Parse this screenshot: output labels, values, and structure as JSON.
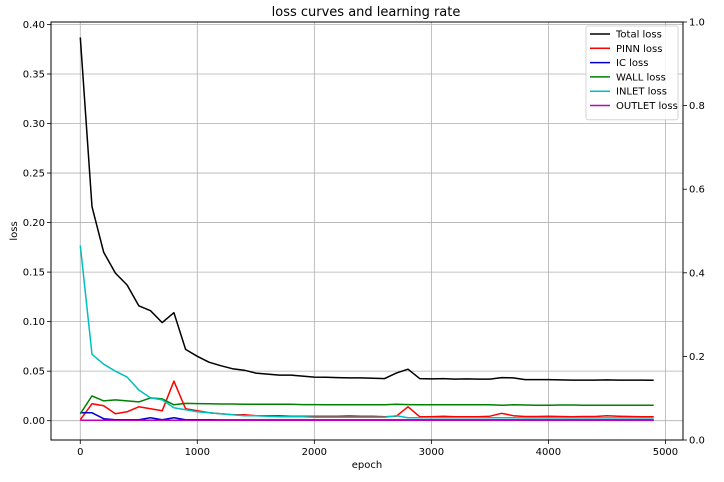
{
  "chart_data": {
    "type": "line",
    "title": "loss curves and learning rate",
    "xlabel": "epoch",
    "ylabel": "loss",
    "y2label": "",
    "xlim": [
      -250,
      5150
    ],
    "ylim": [
      -0.0195,
      0.4025
    ],
    "y2lim": [
      0,
      1.0
    ],
    "x_ticks": [
      0,
      1000,
      2000,
      3000,
      4000,
      5000
    ],
    "y_ticks": [
      0.0,
      0.05,
      0.1,
      0.15,
      0.2,
      0.25,
      0.3,
      0.35,
      0.4
    ],
    "y2_ticks": [
      0.0,
      0.2,
      0.4,
      0.6,
      0.8,
      1.0
    ],
    "x_tick_labels": [
      "0",
      "1000",
      "2000",
      "3000",
      "4000",
      "5000"
    ],
    "y_tick_labels": [
      "0.00",
      "0.05",
      "0.10",
      "0.15",
      "0.20",
      "0.25",
      "0.30",
      "0.35",
      "0.40"
    ],
    "y2_tick_labels": [
      "0.0",
      "0.2",
      "0.4",
      "0.6",
      "0.8",
      "1.0"
    ],
    "grid": true,
    "legend_position": "top-right",
    "x": [
      0,
      100,
      200,
      300,
      400,
      500,
      600,
      700,
      800,
      900,
      1000,
      1100,
      1200,
      1300,
      1400,
      1500,
      1600,
      1700,
      1800,
      1900,
      2000,
      2100,
      2200,
      2300,
      2400,
      2500,
      2600,
      2700,
      2800,
      2900,
      3000,
      3100,
      3200,
      3300,
      3400,
      3500,
      3600,
      3700,
      3800,
      3900,
      4000,
      4100,
      4200,
      4300,
      4400,
      4500,
      4600,
      4700,
      4800,
      4900
    ],
    "series": [
      {
        "name": "Total loss",
        "color": "#000000",
        "values": [
          0.387,
          0.216,
          0.17,
          0.149,
          0.137,
          0.116,
          0.111,
          0.099,
          0.109,
          0.072,
          0.065,
          0.059,
          0.0555,
          0.0525,
          0.051,
          0.048,
          0.047,
          0.046,
          0.046,
          0.045,
          0.044,
          0.0438,
          0.0435,
          0.0432,
          0.0432,
          0.0428,
          0.0425,
          0.048,
          0.052,
          0.0425,
          0.0422,
          0.0425,
          0.042,
          0.0422,
          0.042,
          0.042,
          0.0435,
          0.0432,
          0.0415,
          0.0415,
          0.0415,
          0.0412,
          0.041,
          0.041,
          0.041,
          0.0412,
          0.041,
          0.041,
          0.041,
          0.0408
        ]
      },
      {
        "name": "PINN loss",
        "color": "#ff0000",
        "values": [
          0.001,
          0.017,
          0.015,
          0.007,
          0.009,
          0.014,
          0.012,
          0.01,
          0.04,
          0.012,
          0.01,
          0.008,
          0.007,
          0.006,
          0.006,
          0.005,
          0.005,
          0.005,
          0.0045,
          0.0045,
          0.0045,
          0.0045,
          0.0045,
          0.0048,
          0.0045,
          0.0045,
          0.004,
          0.0045,
          0.014,
          0.004,
          0.004,
          0.0045,
          0.004,
          0.004,
          0.004,
          0.0045,
          0.0075,
          0.005,
          0.0042,
          0.0042,
          0.0045,
          0.0042,
          0.004,
          0.0042,
          0.0042,
          0.005,
          0.0045,
          0.0042,
          0.004,
          0.004
        ]
      },
      {
        "name": "IC loss",
        "color": "#0000cc",
        "values": [
          0.008,
          0.008,
          0.002,
          0.001,
          0.001,
          0.001,
          0.003,
          0.001,
          0.003,
          0.001,
          0.001,
          0.001,
          0.0008,
          0.0008,
          0.0008,
          0.0008,
          0.0008,
          0.0008,
          0.0008,
          0.0008,
          0.0008,
          0.0008,
          0.0008,
          0.0008,
          0.0008,
          0.0008,
          0.0008,
          0.0008,
          0.0008,
          0.0008,
          0.0008,
          0.0008,
          0.0008,
          0.0008,
          0.0008,
          0.0008,
          0.0008,
          0.0008,
          0.0008,
          0.0008,
          0.0008,
          0.0008,
          0.0008,
          0.0008,
          0.0008,
          0.0008,
          0.0008,
          0.0008,
          0.0008,
          0.0008
        ]
      },
      {
        "name": "WALL loss",
        "color": "#008000",
        "values": [
          0.007,
          0.025,
          0.02,
          0.021,
          0.02,
          0.019,
          0.023,
          0.022,
          0.016,
          0.0175,
          0.0172,
          0.017,
          0.0168,
          0.0168,
          0.0165,
          0.0165,
          0.0165,
          0.0165,
          0.0165,
          0.0162,
          0.0162,
          0.016,
          0.016,
          0.016,
          0.016,
          0.016,
          0.016,
          0.0165,
          0.0162,
          0.016,
          0.016,
          0.016,
          0.016,
          0.016,
          0.016,
          0.016,
          0.0155,
          0.016,
          0.0158,
          0.0155,
          0.0155,
          0.0158,
          0.0158,
          0.0155,
          0.0155,
          0.0155,
          0.0155,
          0.0155,
          0.0155,
          0.0155
        ]
      },
      {
        "name": "INLET loss",
        "color": "#00bfbf",
        "values": [
          0.177,
          0.067,
          0.057,
          0.05,
          0.044,
          0.031,
          0.023,
          0.021,
          0.013,
          0.011,
          0.009,
          0.008,
          0.007,
          0.006,
          0.005,
          0.005,
          0.0045,
          0.004,
          0.004,
          0.004,
          0.0035,
          0.0035,
          0.0035,
          0.0035,
          0.0035,
          0.0035,
          0.0035,
          0.005,
          0.003,
          0.003,
          0.003,
          0.003,
          0.003,
          0.003,
          0.003,
          0.003,
          0.003,
          0.003,
          0.0028,
          0.0028,
          0.003,
          0.0028,
          0.0028,
          0.0028,
          0.0028,
          0.0028,
          0.0028,
          0.0028,
          0.0028,
          0.0028
        ]
      },
      {
        "name": "OUTLET loss",
        "color": "#bf00bf",
        "values": [
          0.0005,
          0.0005,
          0.0005,
          0.0005,
          0.0005,
          0.0005,
          0.0005,
          0.0005,
          0.0005,
          0.0005,
          0.0005,
          0.0005,
          0.0005,
          0.0005,
          0.0005,
          0.0005,
          0.0005,
          0.0005,
          0.0005,
          0.0005,
          0.0005,
          0.0005,
          0.0005,
          0.0005,
          0.0005,
          0.0005,
          0.0005,
          0.0005,
          0.0005,
          0.0005,
          0.0005,
          0.0005,
          0.0005,
          0.0005,
          0.0005,
          0.0005,
          0.0005,
          0.0005,
          0.0005,
          0.0005,
          0.0005,
          0.0005,
          0.0005,
          0.0005,
          0.0005,
          0.0005,
          0.0005,
          0.0005,
          0.0005,
          0.0005
        ]
      }
    ]
  }
}
